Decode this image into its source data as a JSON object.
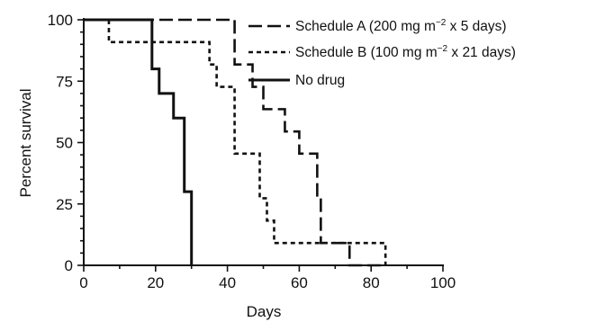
{
  "chart_data": {
    "type": "line",
    "subtype": "step",
    "xlabel": "Days",
    "ylabel": "Percent survival",
    "xlim": [
      0,
      100
    ],
    "ylim": [
      0,
      100
    ],
    "x_ticks": [
      "0",
      "20",
      "40",
      "60",
      "80",
      "100"
    ],
    "y_ticks": [
      "0",
      "25",
      "50",
      "75",
      "100"
    ],
    "grid": false,
    "legend_position": "top-right",
    "series": [
      {
        "name": "Schedule A (200 mg m−2 x 5 days)",
        "legend": {
          "pre": "Schedule A (200 mg m",
          "sup": "−2",
          "post": " x 5 days)"
        },
        "line_style": "long-dash",
        "x": [
          0,
          42,
          42,
          47,
          47,
          50,
          50,
          56,
          56,
          60,
          60,
          65,
          65,
          66,
          66,
          70,
          70,
          74,
          74,
          84
        ],
        "y": [
          100,
          100,
          81.8,
          81.8,
          72.7,
          72.7,
          63.6,
          63.6,
          54.5,
          54.5,
          45.5,
          45.5,
          27.3,
          27.3,
          9.1,
          9.1,
          9.1,
          9.1,
          0,
          0
        ]
      },
      {
        "name": "Schedule B (100 mg m−2 x 21 days)",
        "legend": {
          "pre": "Schedule B (100 mg m",
          "sup": "−2",
          "post": " x 21 days)"
        },
        "line_style": "short-dash",
        "x": [
          7,
          7,
          35,
          35,
          37,
          37,
          42,
          42,
          49,
          49,
          51,
          51,
          53,
          53,
          56,
          56,
          84,
          84
        ],
        "y": [
          100,
          90.9,
          90.9,
          81.8,
          81.8,
          72.7,
          72.7,
          45.5,
          45.5,
          27.3,
          27.3,
          18.2,
          18.2,
          9.1,
          9.1,
          9.1,
          9.1,
          0
        ]
      },
      {
        "name": "No drug",
        "legend": {
          "pre": "No drug",
          "sup": "",
          "post": ""
        },
        "line_style": "solid",
        "x": [
          0,
          19,
          19,
          21,
          21,
          25,
          25,
          28,
          28,
          30,
          30
        ],
        "y": [
          100,
          100,
          80,
          80,
          70,
          70,
          60,
          60,
          30,
          30,
          0
        ]
      }
    ]
  }
}
